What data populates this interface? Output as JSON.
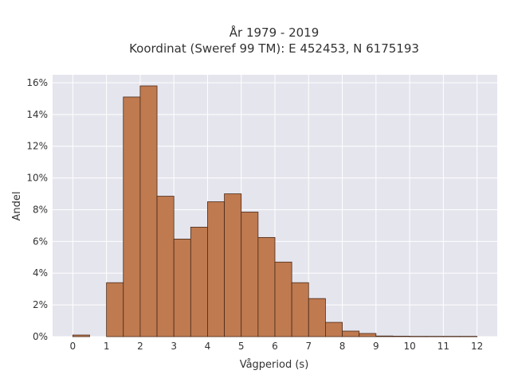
{
  "chart_data": {
    "type": "bar",
    "title_line1": "År 1979 - 2019",
    "title_line2": "Koordinat (Sweref 99 TM): E 452453, N 6175193",
    "xlabel": "Vågperiod (s)",
    "ylabel": "Andel",
    "xlim": [
      -0.6,
      12.6
    ],
    "ylim": [
      0,
      16.5
    ],
    "x_ticks": [
      0,
      1,
      2,
      3,
      4,
      5,
      6,
      7,
      8,
      9,
      10,
      11,
      12
    ],
    "y_ticks": [
      0,
      2,
      4,
      6,
      8,
      10,
      12,
      14,
      16
    ],
    "y_tick_labels": [
      "0%",
      "2%",
      "4%",
      "6%",
      "8%",
      "10%",
      "12%",
      "14%",
      "16%"
    ],
    "bin_width": 0.5,
    "bins": [
      {
        "x0": 0.0,
        "value": 0.1
      },
      {
        "x0": 1.0,
        "value": 3.4
      },
      {
        "x0": 1.5,
        "value": 15.1
      },
      {
        "x0": 2.0,
        "value": 15.8
      },
      {
        "x0": 2.5,
        "value": 8.85
      },
      {
        "x0": 3.0,
        "value": 6.15
      },
      {
        "x0": 3.5,
        "value": 6.9
      },
      {
        "x0": 4.0,
        "value": 8.5
      },
      {
        "x0": 4.5,
        "value": 9.0
      },
      {
        "x0": 5.0,
        "value": 7.85
      },
      {
        "x0": 5.5,
        "value": 6.25
      },
      {
        "x0": 6.0,
        "value": 4.7
      },
      {
        "x0": 6.5,
        "value": 3.4
      },
      {
        "x0": 7.0,
        "value": 2.4
      },
      {
        "x0": 7.5,
        "value": 0.9
      },
      {
        "x0": 8.0,
        "value": 0.35
      },
      {
        "x0": 8.5,
        "value": 0.2
      },
      {
        "x0": 9.0,
        "value": 0.04
      },
      {
        "x0": 9.5,
        "value": 0.03
      },
      {
        "x0": 10.0,
        "value": 0.02
      },
      {
        "x0": 10.5,
        "value": 0.02
      },
      {
        "x0": 11.0,
        "value": 0.02
      },
      {
        "x0": 11.5,
        "value": 0.02
      }
    ],
    "grid": true,
    "colors": {
      "bar_fill": "#bf7a50",
      "bar_stroke": "#4a2a18",
      "plot_bg": "#e5e5ee",
      "grid": "#ffffff"
    }
  }
}
